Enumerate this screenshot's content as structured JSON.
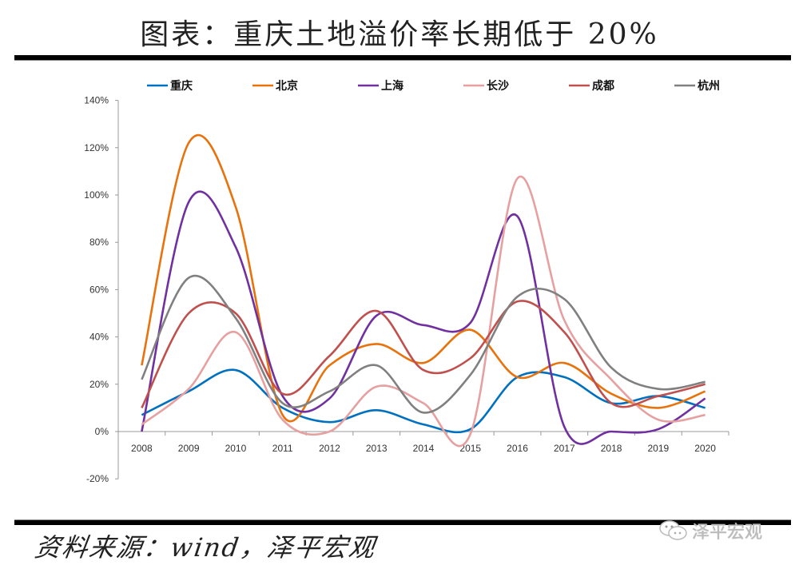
{
  "header": {
    "title": "图表：重庆土地溢价率长期低于 20%"
  },
  "footer": {
    "source": "资料来源：wind，泽平宏观",
    "watermark": "泽平宏观",
    "watermark_icon": "wechat-icon"
  },
  "chart_data": {
    "type": "line",
    "title": "图表：重庆土地溢价率长期低于 20%",
    "xlabel": "",
    "ylabel": "",
    "smoothed": true,
    "categories": [
      "2008",
      "2009",
      "2010",
      "2011",
      "2012",
      "2013",
      "2014",
      "2015",
      "2016",
      "2017",
      "2018",
      "2019",
      "2020"
    ],
    "y_ticks": [
      "-20%",
      "0%",
      "20%",
      "40%",
      "60%",
      "80%",
      "100%",
      "120%",
      "140%"
    ],
    "ylim": [
      -20,
      140
    ],
    "grid": false,
    "legend_position": "top",
    "series": [
      {
        "name": "重庆",
        "color": "#0070C0",
        "values": [
          7,
          17,
          26,
          10,
          4,
          9,
          3,
          1,
          23,
          23,
          12,
          15,
          10
        ]
      },
      {
        "name": "北京",
        "color": "#E8720C",
        "values": [
          28,
          122,
          95,
          7,
          28,
          37,
          29,
          43,
          23,
          29,
          16,
          10,
          17
        ]
      },
      {
        "name": "上海",
        "color": "#7030A0",
        "values": [
          0,
          97,
          78,
          15,
          14,
          49,
          45,
          46,
          91,
          2,
          0,
          1,
          14
        ]
      },
      {
        "name": "长沙",
        "color": "#E6A0A0",
        "values": [
          3,
          18,
          42,
          5,
          0,
          19,
          12,
          -1,
          107,
          47,
          22,
          5,
          7
        ]
      },
      {
        "name": "成都",
        "color": "#C0504D",
        "values": [
          10,
          50,
          50,
          16,
          32,
          51,
          26,
          31,
          55,
          42,
          12,
          15,
          20
        ]
      },
      {
        "name": "杭州",
        "color": "#808080",
        "values": [
          22,
          65,
          48,
          12,
          17,
          28,
          8,
          24,
          57,
          56,
          27,
          18,
          21
        ]
      }
    ]
  }
}
